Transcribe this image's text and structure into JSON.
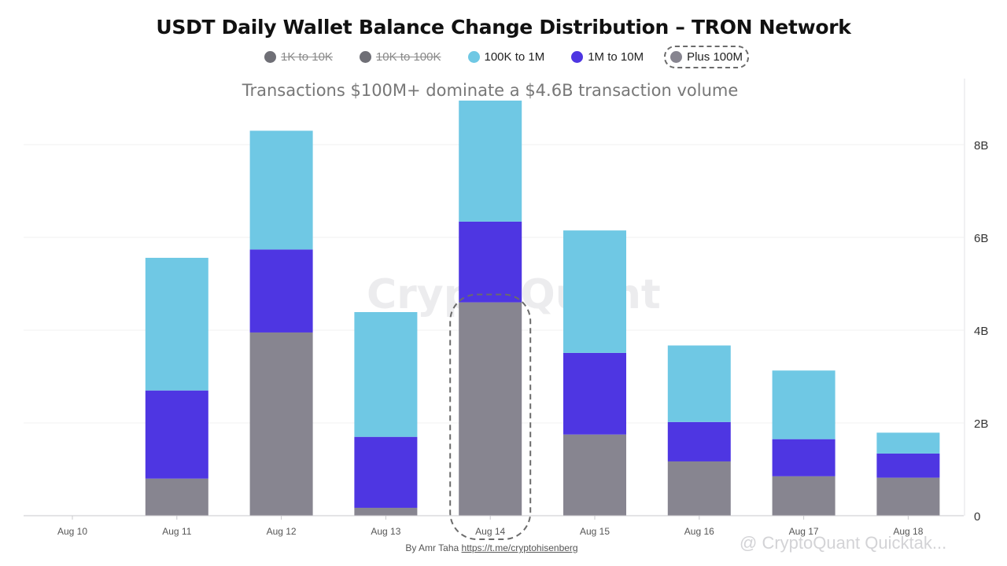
{
  "chart_data": {
    "type": "bar",
    "stacked": true,
    "title": "USDT Daily Wallet Balance Change Distribution – TRON Network",
    "subtitle": "Transactions $100M+ dominate a $4.6B transaction volume",
    "categories": [
      "Aug 10",
      "Aug 11",
      "Aug 12",
      "Aug 13",
      "Aug 14",
      "Aug 15",
      "Aug 16",
      "Aug 17",
      "Aug 18"
    ],
    "y_ticks": [
      "0",
      "2B",
      "4B",
      "6B",
      "8B"
    ],
    "ylim": [
      0,
      9000000000
    ],
    "y_axis_position": "right",
    "grid": true,
    "legend_position": "top-center",
    "legend": [
      {
        "name": "1K to 10K",
        "color": "#6f6f76",
        "hidden": true
      },
      {
        "name": "10K to 100K",
        "color": "#6f6f76",
        "hidden": true
      },
      {
        "name": "100K to 1M",
        "color": "#6fc8e4",
        "hidden": false
      },
      {
        "name": "1M to 10M",
        "color": "#4e36e2",
        "hidden": false
      },
      {
        "name": "Plus 100M",
        "color": "#878590",
        "hidden": false,
        "highlighted": true
      }
    ],
    "series": [
      {
        "name": "Plus 100M",
        "color": "#878590",
        "values": [
          0,
          800000000,
          3950000000,
          170000000,
          4600000000,
          1750000000,
          1170000000,
          850000000,
          820000000
        ]
      },
      {
        "name": "1M to 10M",
        "color": "#4e36e2",
        "values": [
          0,
          1900000000,
          1790000000,
          1530000000,
          1740000000,
          1760000000,
          850000000,
          800000000,
          520000000
        ]
      },
      {
        "name": "100K to 1M",
        "color": "#6fc8e4",
        "values": [
          0,
          2860000000,
          2560000000,
          2690000000,
          2610000000,
          2640000000,
          1650000000,
          1480000000,
          450000000
        ]
      }
    ],
    "highlighted_category": "Aug 14",
    "watermark": "CryptoQuant",
    "footer_text": "By Amr Taha",
    "footer_link": "https://t.me/cryptohisenberg",
    "corner_mark": "@ CryptoQuant Quicktak..."
  }
}
